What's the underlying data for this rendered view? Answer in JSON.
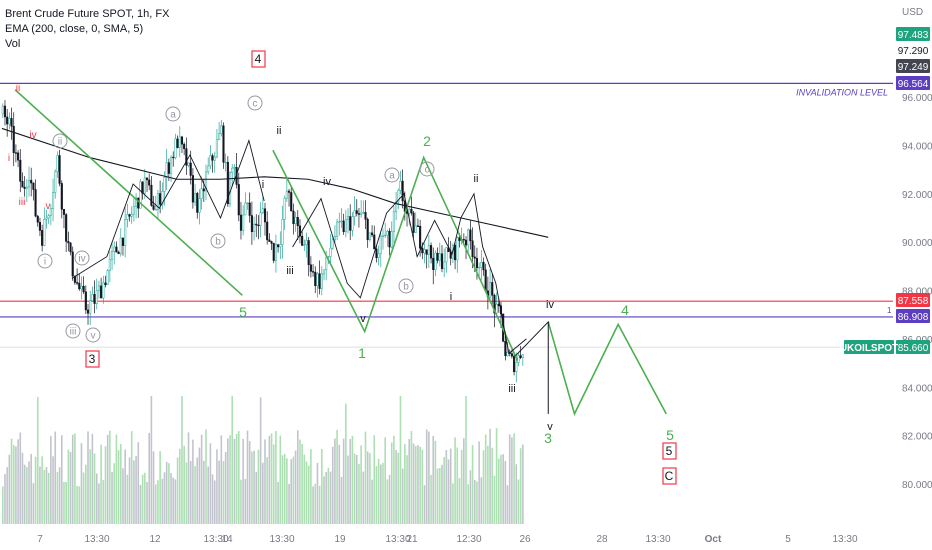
{
  "header": {
    "title": "Brent Crude Future SPOT, 1h, FX",
    "indicator": "EMA (200, close, 0, SMA, 5)",
    "volume_label": "Vol"
  },
  "axis": {
    "currency": "USD",
    "price_ticks": [
      "96.000",
      "94.000",
      "92.000",
      "90.000",
      "88.000",
      "86.000",
      "84.000",
      "82.000",
      "80.000"
    ],
    "time_ticks": [
      "7",
      "13:30",
      "12",
      "13:30",
      "14",
      "13:30",
      "19",
      "13:30",
      "21",
      "12:30",
      "26",
      "28",
      "13:30",
      "Oct",
      "5",
      "13:30"
    ]
  },
  "price_tags": [
    {
      "value": "97.483",
      "bg": "#1fa37f",
      "fg": "#ffffff"
    },
    {
      "value": "97.290",
      "bg": "#ffffff",
      "fg": "#131722"
    },
    {
      "value": "97.249",
      "bg": "#434651",
      "fg": "#ffffff"
    },
    {
      "value": "96.564",
      "bg": "#5c3ec2",
      "fg": "#ffffff"
    },
    {
      "value": "87.558",
      "bg": "#f23645",
      "fg": "#ffffff"
    },
    {
      "value": "86.908",
      "bg": "#5c3ec2",
      "fg": "#ffffff"
    },
    {
      "value": "85.660",
      "bg": "#1fa37f",
      "fg": "#ffffff"
    }
  ],
  "symbol_tag": "UKOILSPOT",
  "invalidation_label": "INVALIDATION LEVEL",
  "line_marker": "1",
  "wave_labels": {
    "major": [
      "4",
      "3",
      "5",
      "C"
    ],
    "green": [
      "5",
      "1",
      "2",
      "3",
      "4",
      "5"
    ],
    "black": [
      "ii",
      "i",
      "iii",
      "iv",
      "v",
      "ii",
      "i",
      "iii",
      "iv",
      "v",
      "iii"
    ],
    "circled": [
      "a",
      "c",
      "b",
      "a",
      "b",
      "c",
      "ii",
      "iv",
      "i",
      "iii",
      "v"
    ],
    "red": [
      "ii",
      "iv",
      "i",
      "iii",
      "v"
    ]
  },
  "colors": {
    "up": "#26a69a",
    "down": "#131722",
    "ema": "#131722",
    "wave_green": "#4caf50",
    "invalidation": "#5c3ec2",
    "red_line": "#f23645",
    "purple_line": "#5c3ec2",
    "vol_green": "#9ed9a4",
    "vol_gray": "#b6bac4",
    "price_gray": "#9598a1"
  },
  "chart_data": {
    "type": "candlestick",
    "title": "Brent Crude Future SPOT, 1h, FX",
    "ylabel": "USD",
    "ylim": [
      78.5,
      98.5
    ],
    "horizontal_levels": [
      96.564,
      87.558,
      86.908,
      85.66
    ],
    "close_path": [
      [
        0,
        95.3
      ],
      [
        3,
        94.8
      ],
      [
        6,
        93.5
      ],
      [
        9,
        92.1
      ],
      [
        12,
        93.0
      ],
      [
        15,
        91.2
      ],
      [
        18,
        90.3
      ],
      [
        22,
        91.8
      ],
      [
        25,
        93.4
      ],
      [
        28,
        91.0
      ],
      [
        31,
        89.2
      ],
      [
        34,
        88.3
      ],
      [
        38,
        87.3
      ],
      [
        42,
        87.6
      ],
      [
        46,
        88.3
      ],
      [
        50,
        89.3
      ],
      [
        55,
        90.3
      ],
      [
        60,
        91.4
      ],
      [
        65,
        92.5
      ],
      [
        70,
        91.3
      ],
      [
        75,
        93.0
      ],
      [
        80,
        94.2
      ],
      [
        84,
        93.3
      ],
      [
        87,
        92.0
      ],
      [
        90,
        91.4
      ],
      [
        93,
        92.7
      ],
      [
        96,
        93.5
      ],
      [
        100,
        94.6
      ],
      [
        103,
        92.0
      ],
      [
        106,
        93.4
      ],
      [
        109,
        90.6
      ],
      [
        112,
        91.6
      ],
      [
        115,
        90.5
      ],
      [
        119,
        91.2
      ],
      [
        122,
        90.0
      ],
      [
        124,
        89.6
      ],
      [
        127,
        90.3
      ],
      [
        130,
        92.1
      ],
      [
        133,
        91.0
      ],
      [
        136,
        90.1
      ],
      [
        139,
        89.8
      ],
      [
        142,
        88.6
      ],
      [
        145,
        88.4
      ],
      [
        148,
        89.0
      ],
      [
        151,
        90.2
      ],
      [
        154,
        90.5
      ],
      [
        158,
        90.8
      ],
      [
        162,
        91.1
      ],
      [
        165,
        91.0
      ],
      [
        168,
        90.3
      ],
      [
        171,
        89.3
      ],
      [
        174,
        90.3
      ],
      [
        177,
        89.9
      ],
      [
        180,
        91.4
      ],
      [
        182,
        92.2
      ],
      [
        185,
        91.1
      ],
      [
        189,
        90.5
      ],
      [
        192,
        90.0
      ],
      [
        195,
        89.6
      ],
      [
        198,
        89.1
      ],
      [
        202,
        89.4
      ],
      [
        206,
        89.5
      ],
      [
        210,
        90.3
      ],
      [
        214,
        90.0
      ],
      [
        217,
        89.3
      ],
      [
        220,
        88.5
      ],
      [
        223,
        88.0
      ],
      [
        226,
        87.0
      ],
      [
        228,
        86.9
      ],
      [
        230,
        85.4
      ],
      [
        233,
        85.0
      ],
      [
        236,
        85.2
      ],
      [
        238,
        85.7
      ]
    ],
    "ema": [
      [
        0,
        94.7
      ],
      [
        40,
        93.5
      ],
      [
        80,
        92.6
      ],
      [
        100,
        92.6
      ],
      [
        120,
        92.7
      ],
      [
        140,
        92.6
      ],
      [
        160,
        92.2
      ],
      [
        180,
        91.6
      ],
      [
        200,
        91.2
      ],
      [
        220,
        90.8
      ],
      [
        240,
        90.4
      ],
      [
        250,
        90.2
      ]
    ],
    "projection": [
      [
        245,
        85.0
      ],
      [
        250,
        86.7
      ],
      [
        262,
        82.9
      ],
      [
        282,
        86.6
      ],
      [
        304,
        82.9
      ]
    ],
    "wave_green_lines": [
      [
        [
          6,
          96.3
        ],
        [
          110,
          87.8
        ]
      ],
      [
        [
          124,
          93.8
        ],
        [
          166,
          86.3
        ],
        [
          193,
          93.5
        ],
        [
          236,
          85.1
        ]
      ]
    ],
    "volume_approx_max": 1.0
  }
}
